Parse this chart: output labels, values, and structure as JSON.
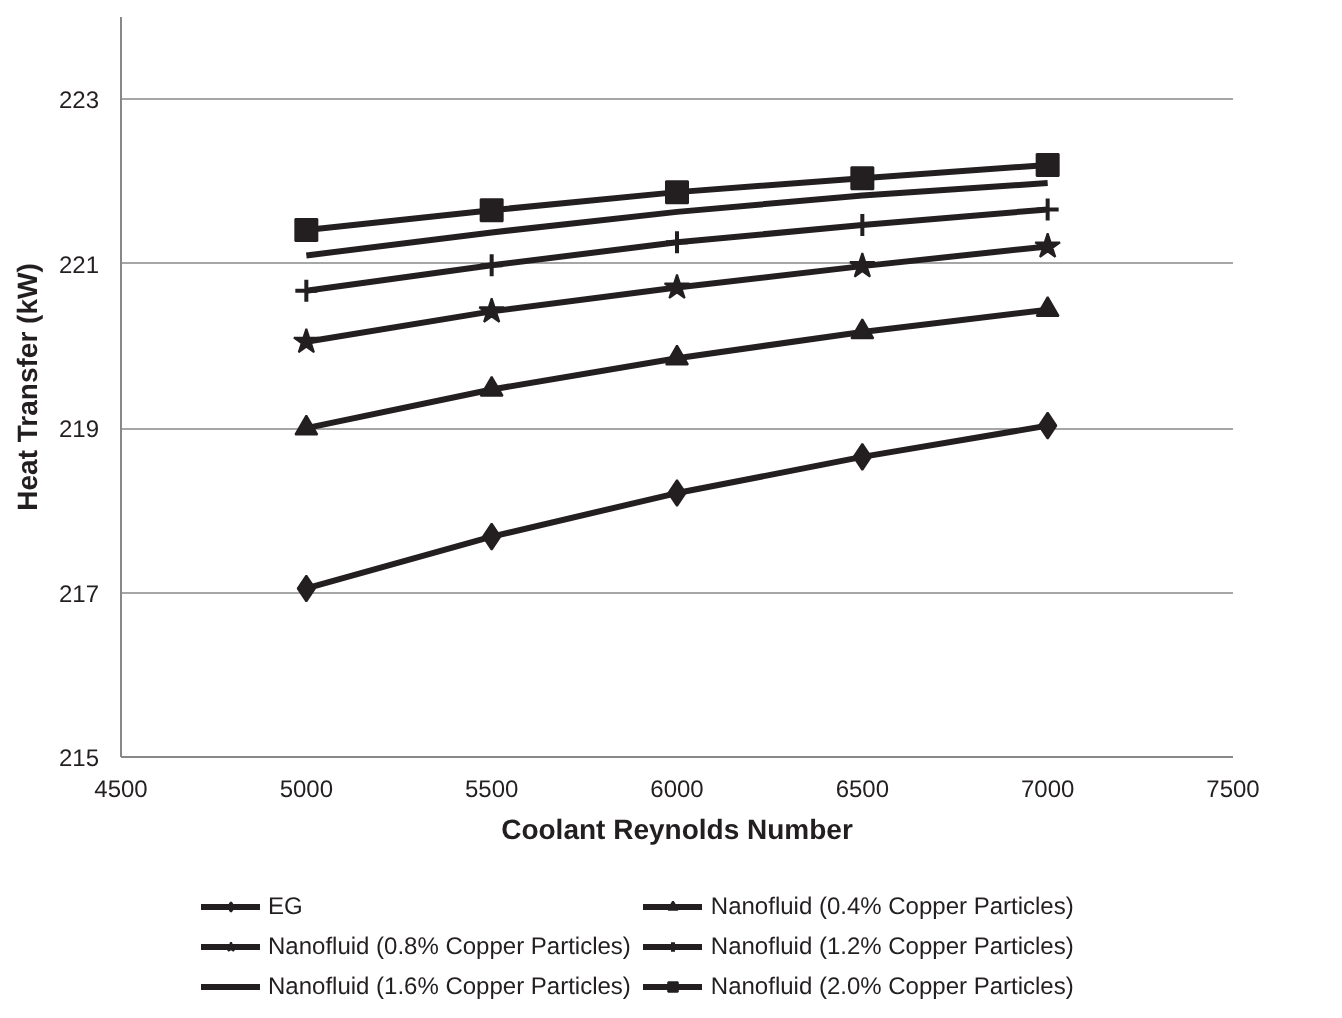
{
  "chart_data": {
    "type": "line",
    "xlabel": "Coolant Reynolds Number",
    "ylabel": "Heat Transfer (kW)",
    "x": [
      5000,
      5500,
      6000,
      6500,
      7000
    ],
    "xlim": [
      4500,
      7500
    ],
    "xticks": [
      4500,
      5000,
      5500,
      6000,
      6500,
      7000,
      7500
    ],
    "ylim": [
      215,
      224
    ],
    "yticks": [
      215,
      217,
      219,
      221,
      223
    ],
    "grid": "y",
    "legend": "bottom",
    "series": [
      {
        "name": "EG",
        "color": "#231f20",
        "marker": "diamond",
        "values": [
          217.05,
          217.68,
          218.21,
          218.65,
          219.03
        ]
      },
      {
        "name": "Nanofluid (0.4% Copper Particles)",
        "color": "#231f20",
        "marker": "triangle",
        "values": [
          219.0,
          219.47,
          219.85,
          220.17,
          220.44
        ]
      },
      {
        "name": "Nanofluid (0.8% Copper Particles)",
        "color": "#231f20",
        "marker": "star",
        "values": [
          220.05,
          220.42,
          220.71,
          220.97,
          221.21
        ]
      },
      {
        "name": "Nanofluid (1.2% Copper Particles)",
        "color": "#231f20",
        "marker": "cross",
        "values": [
          220.67,
          220.98,
          221.26,
          221.47,
          221.66
        ]
      },
      {
        "name": "Nanofluid (1.6% Copper Particles)",
        "color": "#231f20",
        "marker": "none",
        "values": [
          221.1,
          221.38,
          221.63,
          221.83,
          221.98
        ]
      },
      {
        "name": "Nanofluid (2.0% Copper Particles)",
        "color": "#231f20",
        "marker": "square",
        "values": [
          221.41,
          221.65,
          221.87,
          222.04,
          222.2
        ]
      }
    ]
  }
}
